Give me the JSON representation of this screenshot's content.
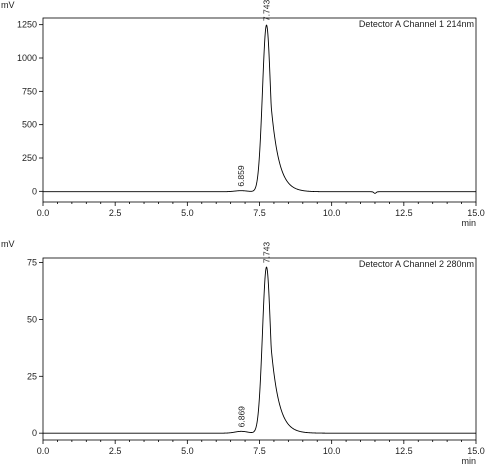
{
  "colors": {
    "trace": "#000000",
    "axis": "#000000",
    "text": "#222222",
    "background": "#ffffff"
  },
  "chart_data": [
    {
      "type": "line",
      "title": "",
      "detector_label": "Detector A Channel 1 214nm",
      "ylabel": "mV",
      "xlabel": "min",
      "xlim": [
        0,
        15
      ],
      "ylim": [
        -80,
        1300
      ],
      "x_ticks": [
        0,
        2.5,
        5,
        7.5,
        10,
        12.5,
        15
      ],
      "x_tick_labels": [
        "0.0",
        "2.5",
        "5.0",
        "7.5",
        "10.0",
        "12.5",
        "15.0"
      ],
      "y_ticks": [
        0,
        250,
        500,
        750,
        1000,
        1250
      ],
      "y_tick_labels": [
        "0",
        "250",
        "500",
        "750",
        "1000",
        "1250"
      ],
      "grid": false,
      "peaks": [
        {
          "label": "6.859",
          "rt": 6.859,
          "height": 8,
          "width": 0.22
        },
        {
          "label": "7.743",
          "rt": 7.743,
          "height": 1250,
          "width_front": 0.14,
          "tail": 0.28
        }
      ],
      "baseline": -3,
      "dip": {
        "rt": 11.5,
        "depth": 12
      }
    },
    {
      "type": "line",
      "title": "",
      "detector_label": "Detector A Channel 2 280nm",
      "ylabel": "mV",
      "xlabel": "min",
      "xlim": [
        0,
        15
      ],
      "ylim": [
        -3,
        77
      ],
      "x_ticks": [
        0,
        2.5,
        5,
        7.5,
        10,
        12.5,
        15
      ],
      "x_tick_labels": [
        "0.0",
        "2.5",
        "5.0",
        "7.5",
        "10.0",
        "12.5",
        "15.0"
      ],
      "y_ticks": [
        0,
        25,
        50,
        75
      ],
      "y_tick_labels": [
        "0",
        "25",
        "50",
        "75"
      ],
      "grid": false,
      "peaks": [
        {
          "label": "6.869",
          "rt": 6.869,
          "height": 0.8,
          "width": 0.22
        },
        {
          "label": "7.743",
          "rt": 7.743,
          "height": 73,
          "width_front": 0.14,
          "tail": 0.28
        }
      ],
      "baseline": 0,
      "dip": {
        "rt": 11.5,
        "depth": 0
      }
    }
  ]
}
